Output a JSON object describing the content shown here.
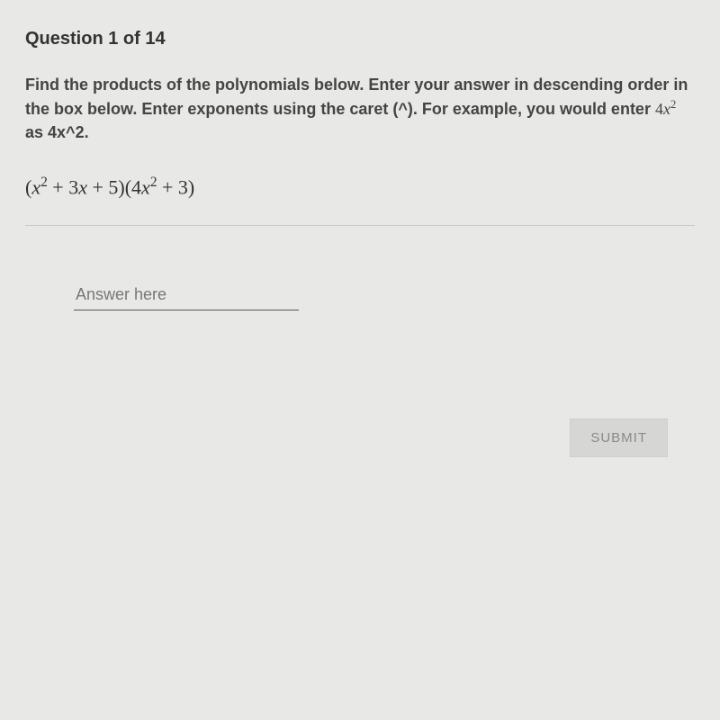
{
  "question": {
    "number_label": "Question 1 of 14",
    "instructions_pre": "Find the products of the polynomials below. Enter your answer in descending order in the box below. Enter exponents using the caret (^). For example, you would enter ",
    "instructions_example_rendered": "4x²",
    "instructions_mid": " as ",
    "instructions_example_typed": "4x^2",
    "instructions_post": ".",
    "expression_plain": "(x^2 + 3x + 5)(4x^2 + 3)"
  },
  "answer": {
    "placeholder": "Answer here",
    "value": ""
  },
  "buttons": {
    "submit": "SUBMIT"
  },
  "style": {
    "background": "#e8e8e6",
    "text_color": "#3a3a38",
    "divider_color": "#c9c9c7",
    "input_underline": "#555555",
    "submit_bg": "#d6d6d4",
    "submit_fg": "#8a8a88"
  }
}
